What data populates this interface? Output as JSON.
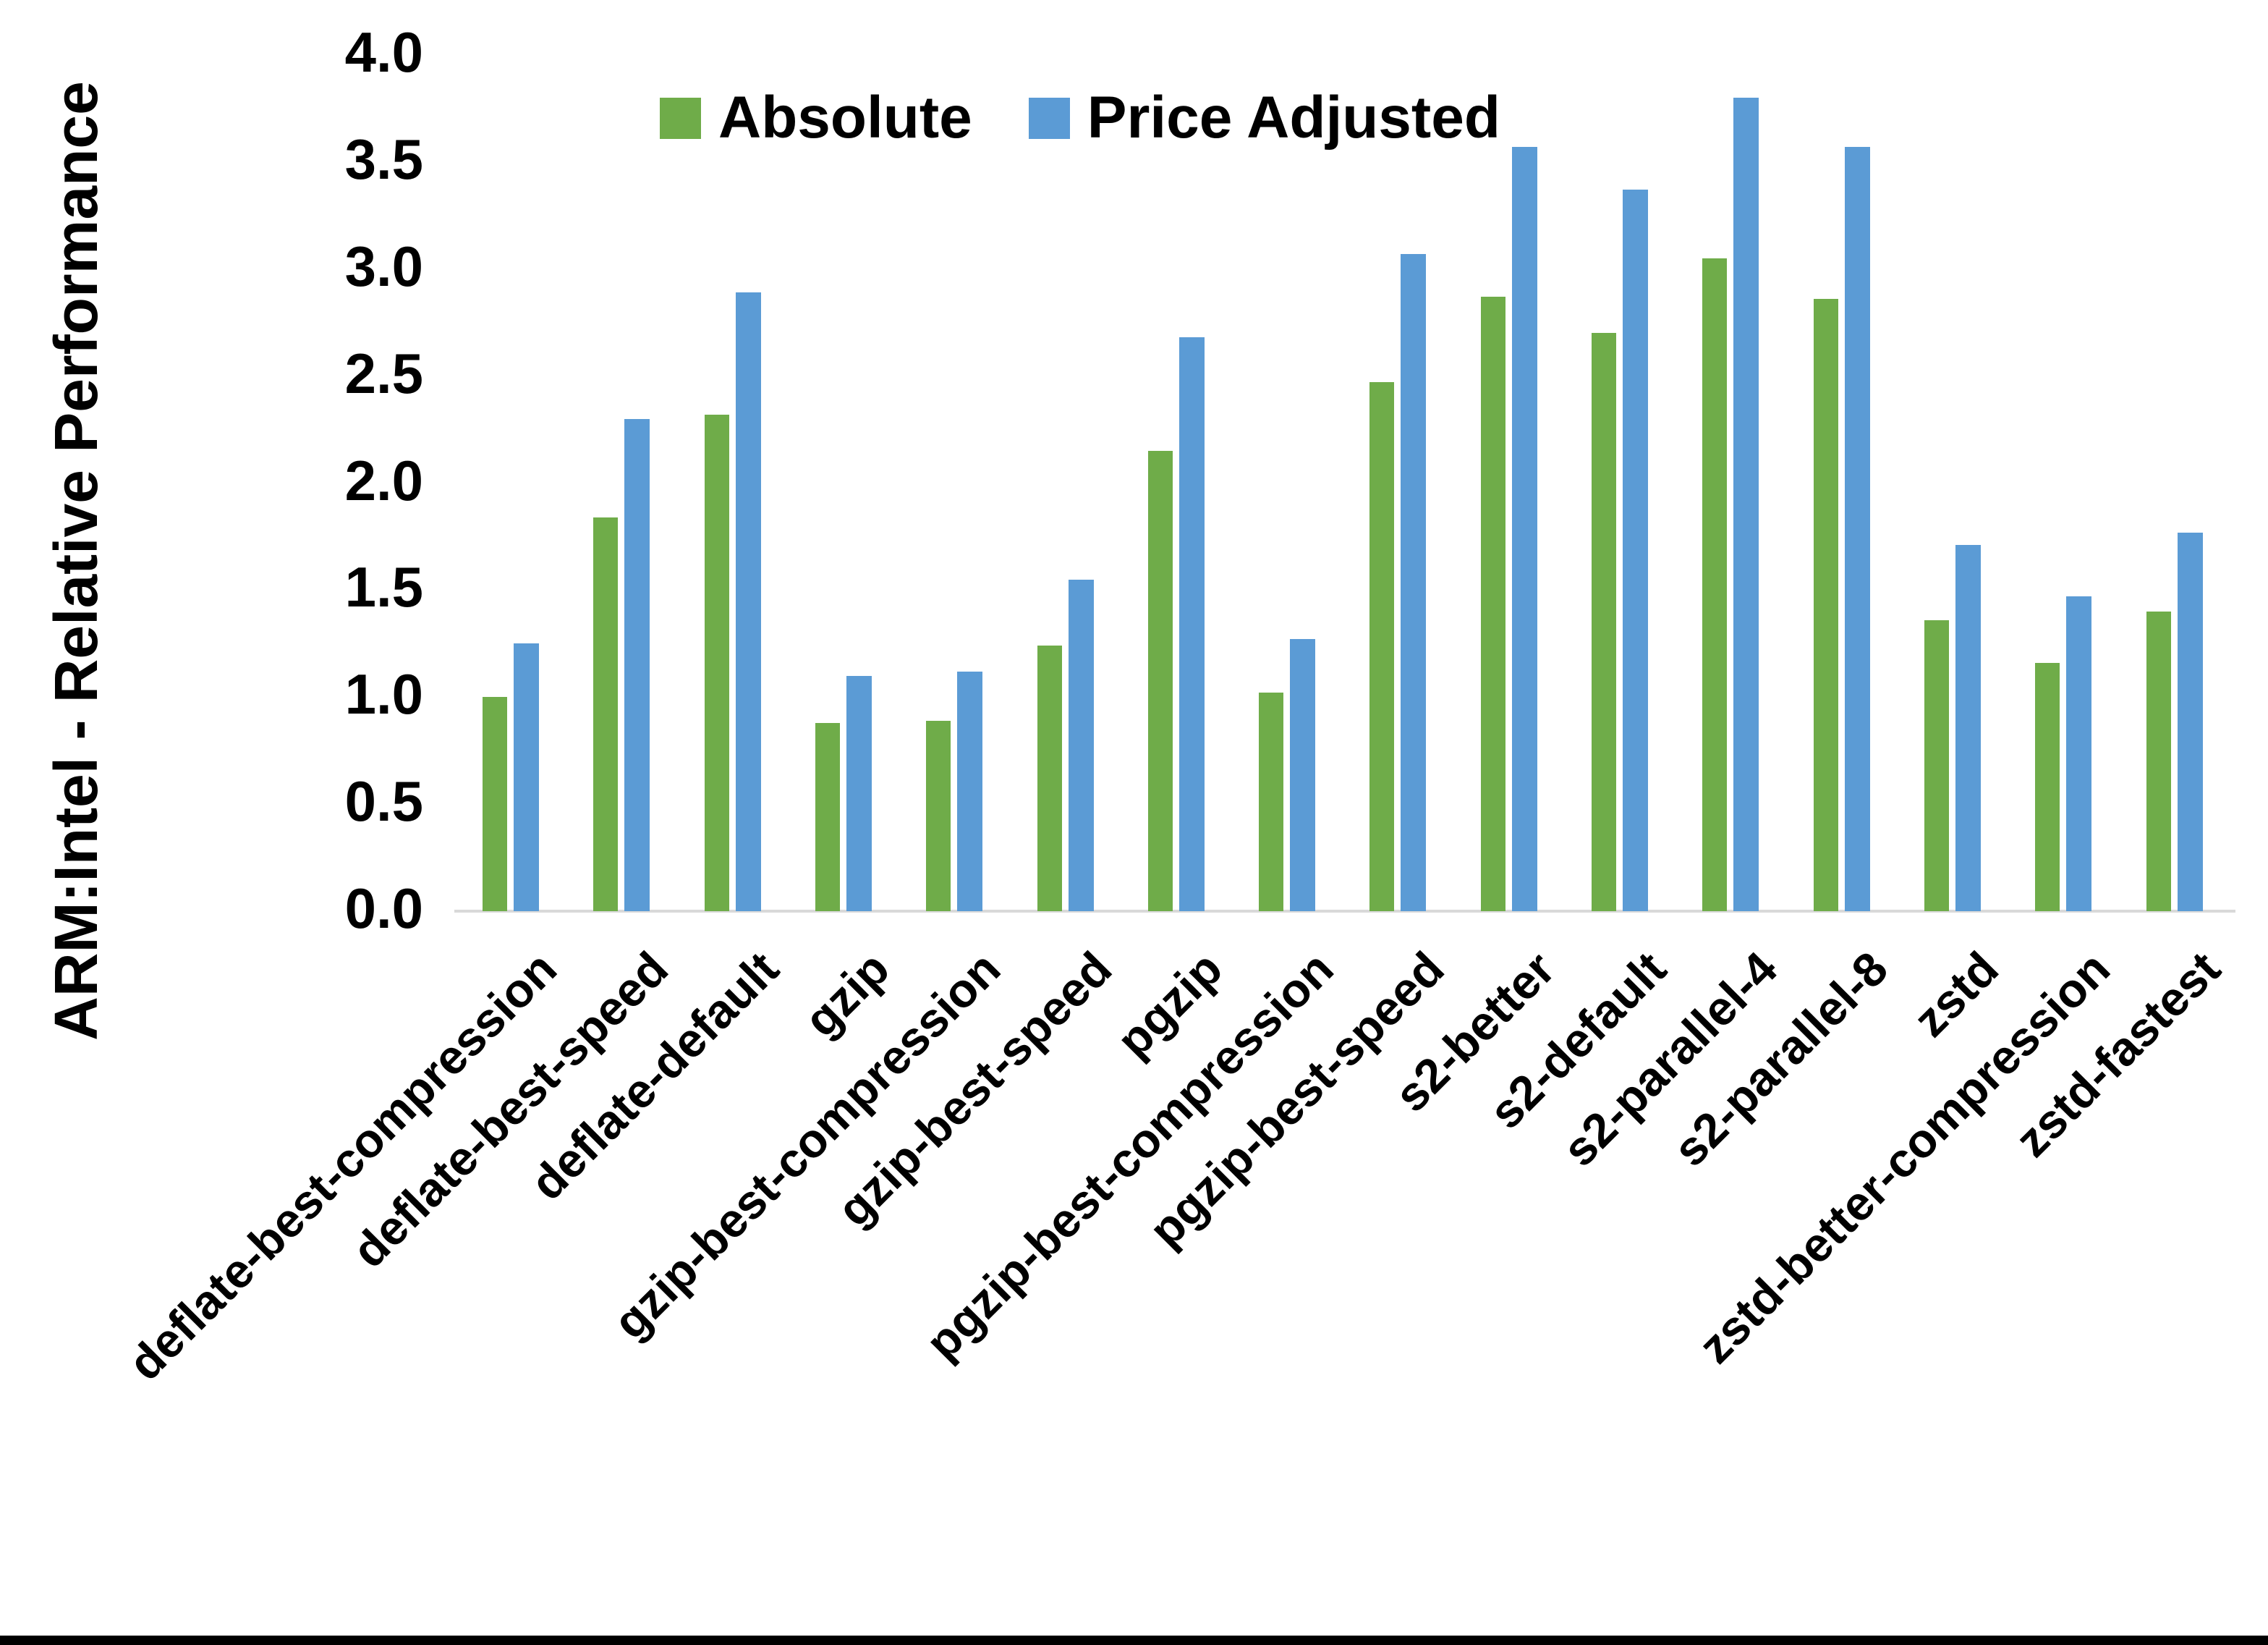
{
  "page": {
    "background": "#ffffff",
    "bottom_border_color": "#000000"
  },
  "legend": {
    "items": [
      {
        "label": "Absolute",
        "color": "#6FAC49"
      },
      {
        "label": "Price Adjusted",
        "color": "#5B9BD5"
      }
    ]
  },
  "y_axis": {
    "title": "ARM:Intel - Relative Performance",
    "tick_labels": [
      "0.0",
      "0.5",
      "1.0",
      "1.5",
      "2.0",
      "2.5",
      "3.0",
      "3.5",
      "4.0"
    ],
    "min": 0,
    "max": 4,
    "axis_line_color": "#d9d9d9"
  },
  "chart_data": {
    "type": "bar",
    "title": "",
    "xlabel": "",
    "ylabel": "ARM:Intel - Relative Performance",
    "ylim": [
      0,
      4
    ],
    "ytick_step": 0.5,
    "grid": false,
    "legend_position": "top",
    "categories": [
      "deflate-best-compression",
      "deflate-best-speed",
      "deflate-default",
      "gzip",
      "gzip-best-compression",
      "gzip-best-speed",
      "pgzip",
      "pgzip-best-compression",
      "pgzip-best-speed",
      "s2-better",
      "s2-default",
      "s2-parallel-4",
      "s2-parallel-8",
      "zstd",
      "zstd-better-compression",
      "zstd-fastest"
    ],
    "series": [
      {
        "name": "Absolute",
        "color": "#6FAC49",
        "values": [
          1.0,
          1.84,
          2.32,
          0.88,
          0.89,
          1.24,
          2.15,
          1.02,
          2.47,
          2.87,
          2.7,
          3.05,
          2.86,
          1.36,
          1.16,
          1.4
        ]
      },
      {
        "name": "Price Adjusted",
        "color": "#5B9BD5",
        "values": [
          1.25,
          2.3,
          2.89,
          1.1,
          1.12,
          1.55,
          2.68,
          1.27,
          3.07,
          3.57,
          3.37,
          3.8,
          3.57,
          1.71,
          1.47,
          1.77
        ]
      }
    ]
  }
}
